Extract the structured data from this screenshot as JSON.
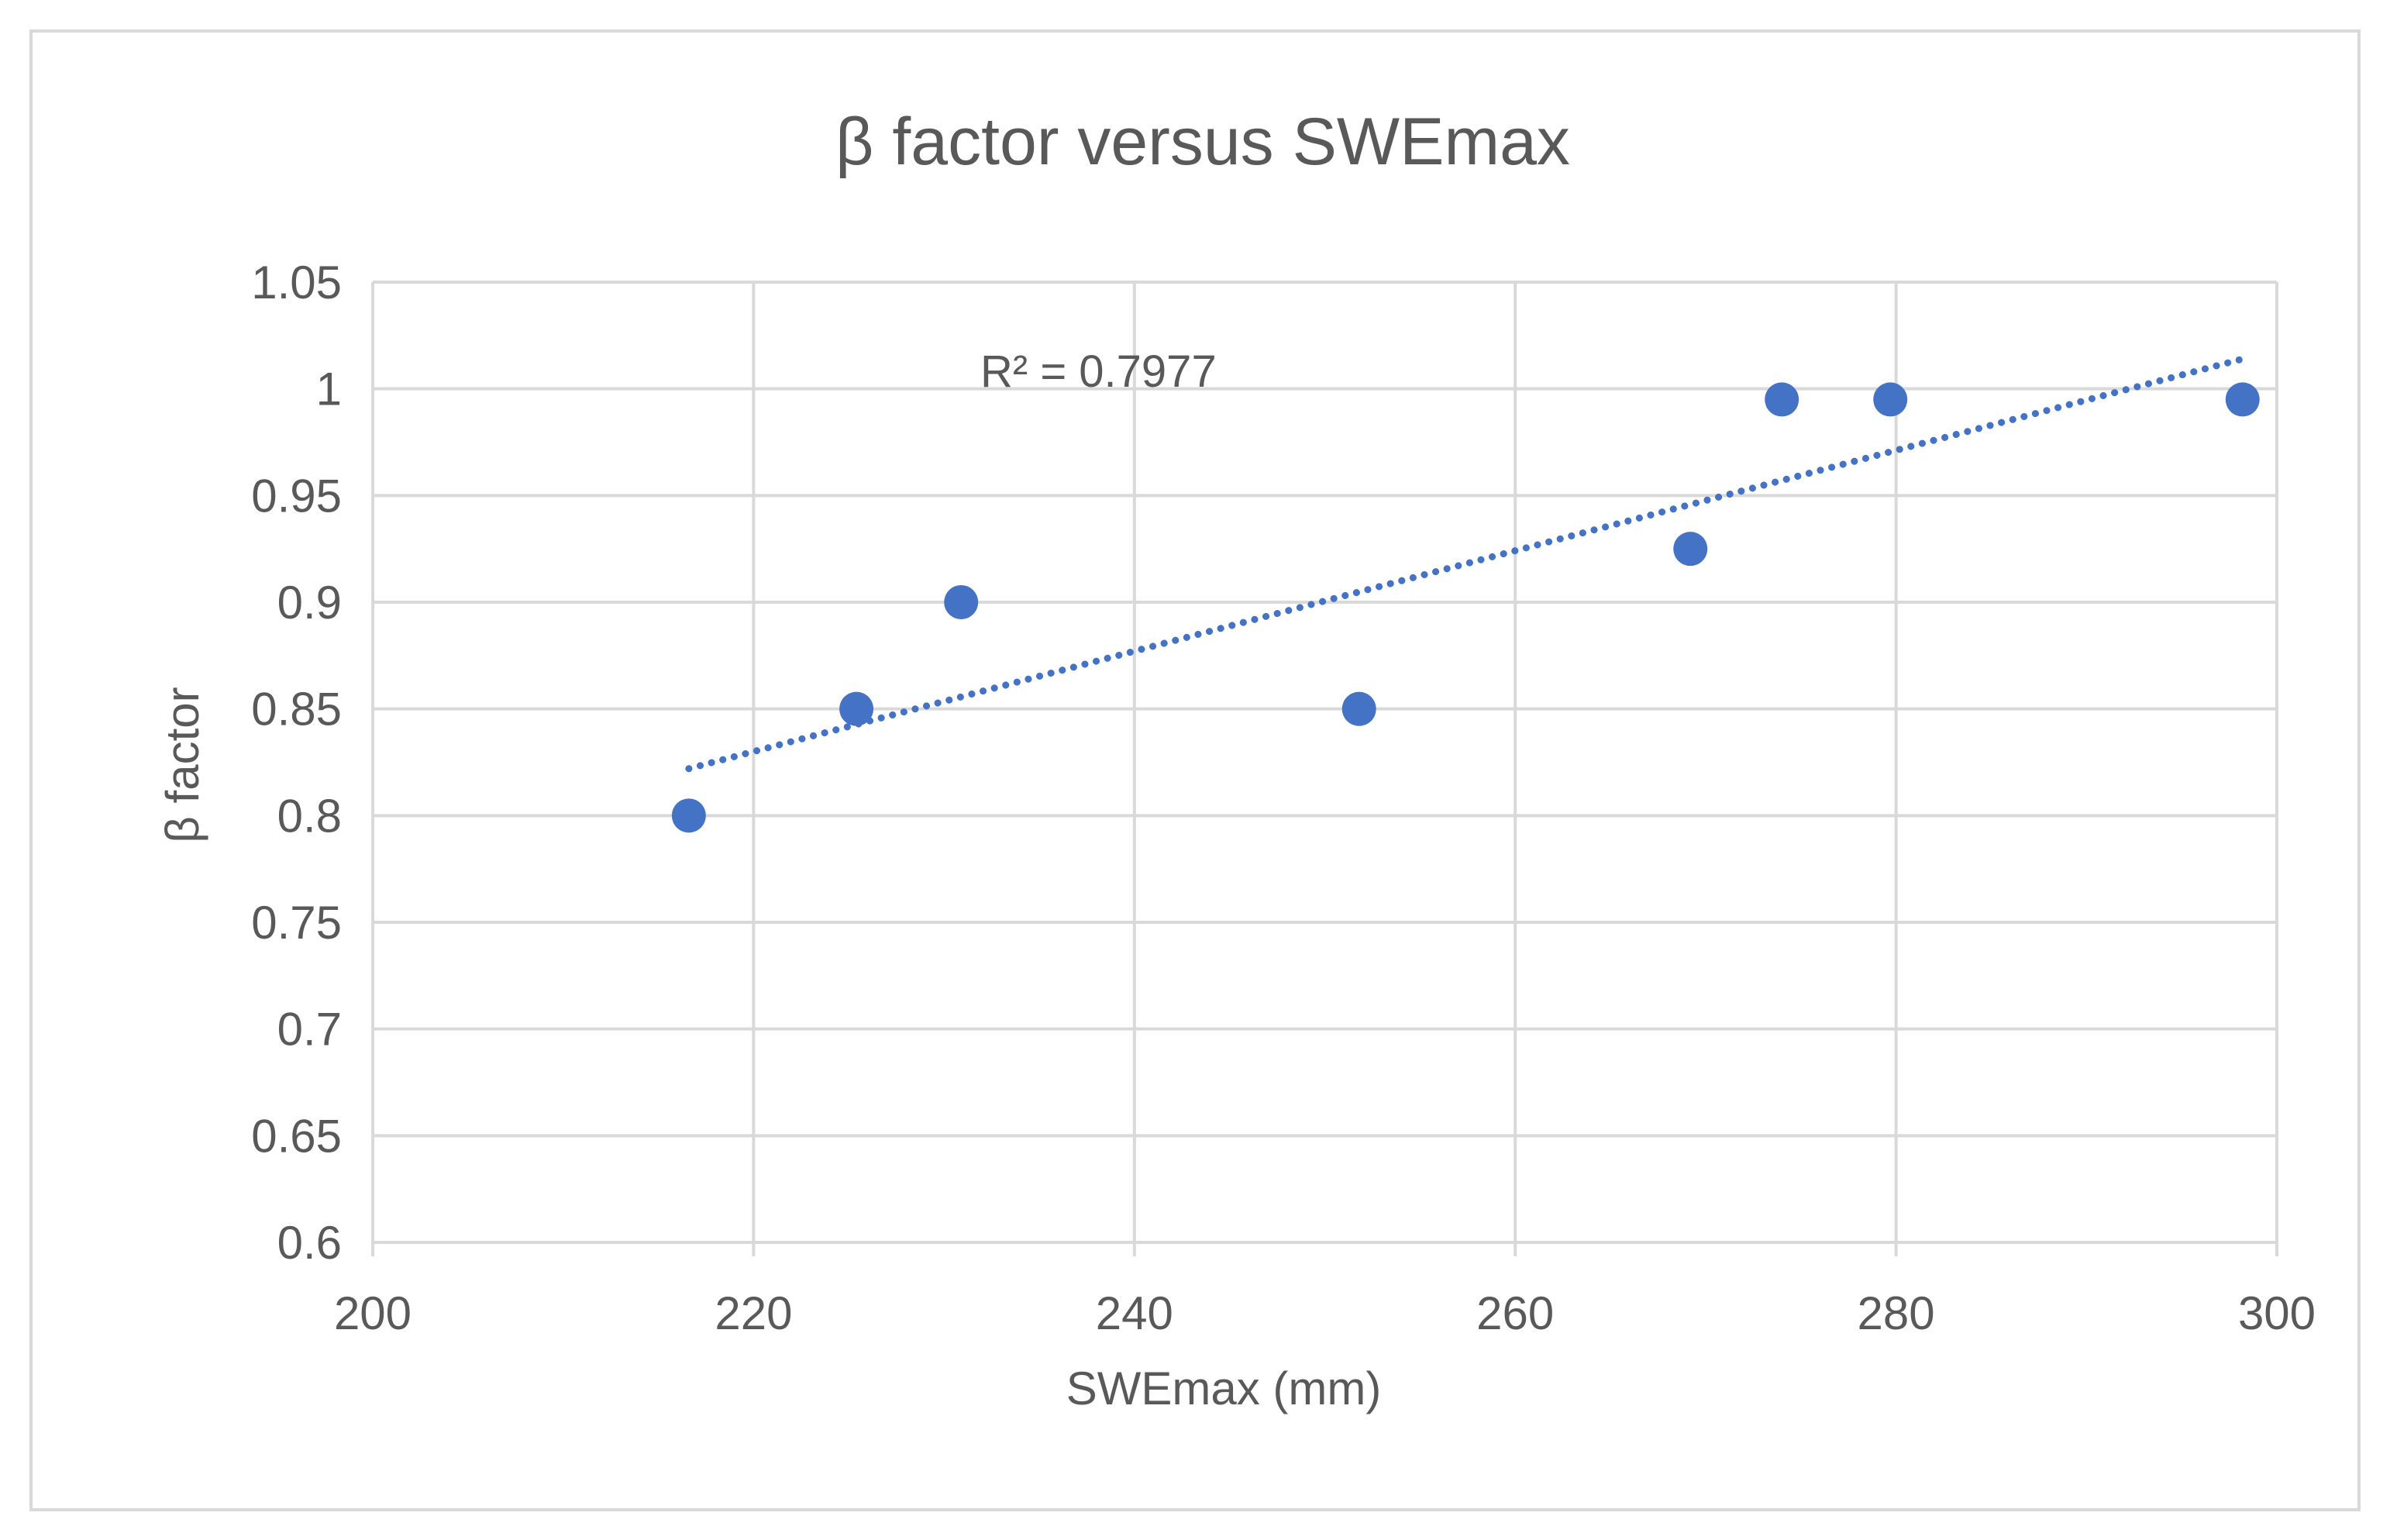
{
  "chart_data": {
    "type": "scatter",
    "title": "β factor versus SWEmax",
    "xlabel": "SWEmax (mm)",
    "ylabel": "β factor",
    "xlim": [
      200,
      300
    ],
    "ylim": [
      0.6,
      1.05
    ],
    "x_ticks": [
      200,
      220,
      240,
      260,
      280,
      300
    ],
    "x_tick_labels": [
      "200",
      "220",
      "240",
      "260",
      "280",
      "300"
    ],
    "y_ticks": [
      0.6,
      0.65,
      0.7,
      0.75,
      0.8,
      0.85,
      0.9,
      0.95,
      1.0,
      1.05
    ],
    "y_tick_labels": [
      "0.6",
      "0.65",
      "0.7",
      "0.75",
      "0.8",
      "0.85",
      "0.9",
      "0.95",
      "1",
      "1.05"
    ],
    "grid": true,
    "series": [
      {
        "name": "β factor",
        "color": "#4472c4",
        "points": [
          {
            "x": 216.6,
            "y": 0.8
          },
          {
            "x": 225.4,
            "y": 0.85
          },
          {
            "x": 230.9,
            "y": 0.9
          },
          {
            "x": 251.8,
            "y": 0.85
          },
          {
            "x": 269.2,
            "y": 0.925
          },
          {
            "x": 274.0,
            "y": 0.995
          },
          {
            "x": 279.7,
            "y": 0.995
          },
          {
            "x": 298.2,
            "y": 0.995
          }
        ]
      }
    ],
    "trendline": {
      "type": "linear",
      "style": "dotted",
      "color": "#4472c4",
      "x_range": [
        216.6,
        298.2
      ],
      "y_range": [
        0.822,
        1.014
      ],
      "r2_label": "R² = 0.7977"
    },
    "colors": {
      "grid": "#d9d9d9",
      "text": "#595959",
      "marker": "#4472c4"
    }
  }
}
